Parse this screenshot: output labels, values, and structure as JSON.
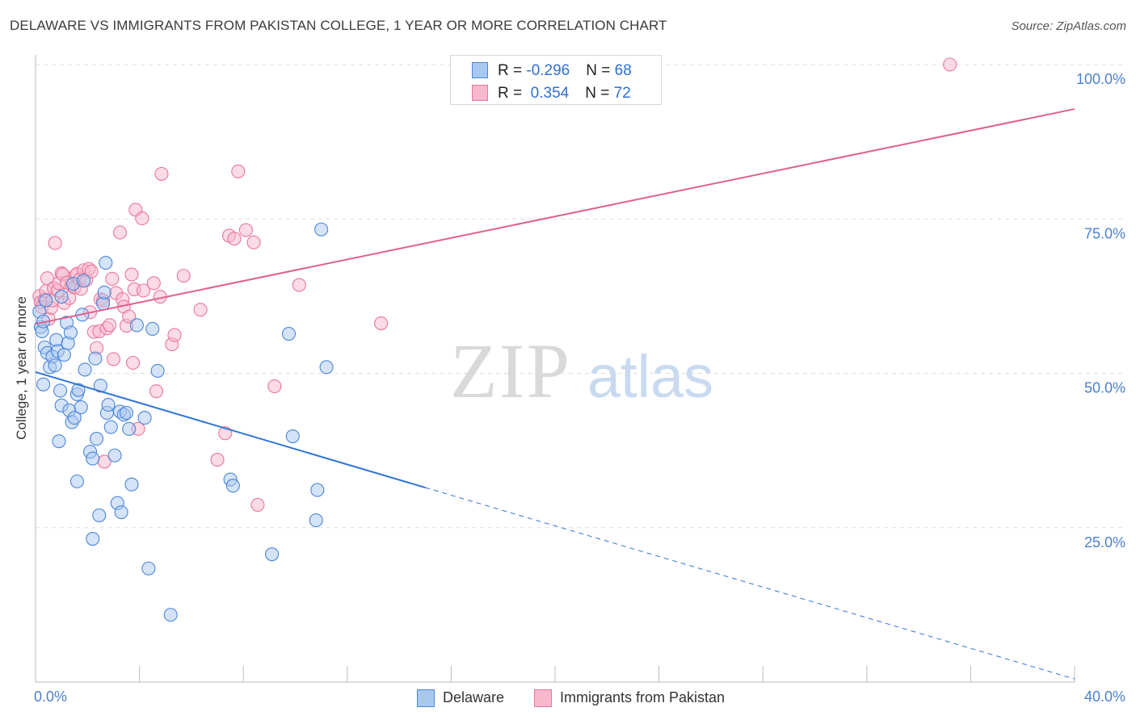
{
  "header": {
    "title": "DELAWARE VS IMMIGRANTS FROM PAKISTAN COLLEGE, 1 YEAR OR MORE CORRELATION CHART",
    "source": "Source: ZipAtlas.com"
  },
  "watermark": {
    "zip": "ZIP",
    "atlas": "atlas"
  },
  "legend_top": {
    "rows": [
      {
        "r_label": "R = ",
        "r_value": "-0.296",
        "n_label": "N = ",
        "n_value": "68"
      },
      {
        "r_label": "R = ",
        "r_value": " 0.354",
        "n_label": "N = ",
        "n_value": "72"
      }
    ]
  },
  "legend_bottom": {
    "delaware": "Delaware",
    "pakistan": "Immigrants from Pakistan"
  },
  "colors": {
    "blue_fill": "#a9c8f0",
    "blue_stroke": "#4a86d8",
    "blue_line": "#2e74d2",
    "pink_fill": "#f7b8cc",
    "pink_stroke": "#e8779c",
    "pink_line": "#e0608c",
    "axis_label": "#4a80cf",
    "grid": "#dddddd"
  },
  "chart_data": {
    "type": "scatter",
    "title": "DELAWARE VS IMMIGRANTS FROM PAKISTAN COLLEGE, 1 YEAR OR MORE CORRELATION CHART",
    "xlabel": "",
    "ylabel": "College, 1 year or more",
    "xlim": [
      0,
      40
    ],
    "ylim": [
      0,
      100
    ],
    "x_tick_labels": [
      {
        "value": 0,
        "label": "0.0%"
      },
      {
        "value": 40,
        "label": "40.0%"
      }
    ],
    "y_tick_labels": [
      {
        "value": 25,
        "label": "25.0%"
      },
      {
        "value": 50,
        "label": "50.0%"
      },
      {
        "value": 75,
        "label": "75.0%"
      },
      {
        "value": 100,
        "label": "100.0%"
      }
    ],
    "grid": true,
    "series": [
      {
        "name": "Delaware",
        "color": "blue",
        "r": -0.296,
        "n": 68,
        "trend": {
          "x0": 0,
          "y0": 50.2,
          "x1": 15,
          "y1": 31.5,
          "dash_to_x": 40,
          "dash_to_y": 0.5
        },
        "points": [
          [
            0.15,
            60.0
          ],
          [
            0.2,
            57.5
          ],
          [
            0.25,
            56.8
          ],
          [
            0.3,
            58.4
          ],
          [
            0.3,
            48.2
          ],
          [
            0.35,
            54.2
          ],
          [
            0.45,
            53.3
          ],
          [
            0.55,
            51.0
          ],
          [
            0.65,
            52.7
          ],
          [
            0.75,
            51.3
          ],
          [
            0.8,
            55.4
          ],
          [
            0.85,
            53.6
          ],
          [
            0.9,
            39.0
          ],
          [
            0.95,
            47.2
          ],
          [
            1.0,
            44.8
          ],
          [
            1.1,
            53.0
          ],
          [
            1.2,
            58.2
          ],
          [
            1.25,
            54.9
          ],
          [
            1.3,
            44.0
          ],
          [
            1.35,
            56.6
          ],
          [
            1.4,
            42.1
          ],
          [
            1.45,
            64.5
          ],
          [
            1.5,
            42.8
          ],
          [
            1.6,
            46.6
          ],
          [
            1.6,
            32.5
          ],
          [
            1.65,
            47.3
          ],
          [
            1.75,
            44.5
          ],
          [
            1.8,
            59.5
          ],
          [
            1.85,
            65.0
          ],
          [
            1.9,
            50.6
          ],
          [
            2.1,
            37.3
          ],
          [
            2.2,
            36.2
          ],
          [
            2.2,
            23.2
          ],
          [
            2.3,
            52.4
          ],
          [
            2.35,
            39.4
          ],
          [
            2.45,
            27.0
          ],
          [
            2.5,
            48.0
          ],
          [
            2.6,
            61.3
          ],
          [
            2.65,
            63.1
          ],
          [
            2.7,
            67.9
          ],
          [
            2.75,
            43.6
          ],
          [
            2.8,
            44.9
          ],
          [
            2.9,
            41.3
          ],
          [
            3.05,
            36.7
          ],
          [
            3.15,
            29.0
          ],
          [
            3.25,
            43.8
          ],
          [
            3.3,
            27.5
          ],
          [
            3.4,
            43.3
          ],
          [
            3.5,
            43.6
          ],
          [
            3.6,
            41.0
          ],
          [
            3.7,
            32.0
          ],
          [
            3.9,
            57.8
          ],
          [
            4.2,
            42.8
          ],
          [
            4.35,
            18.4
          ],
          [
            4.5,
            57.2
          ],
          [
            4.7,
            50.4
          ],
          [
            5.2,
            10.9
          ],
          [
            7.5,
            32.8
          ],
          [
            7.6,
            31.8
          ],
          [
            9.1,
            20.7
          ],
          [
            9.75,
            56.4
          ],
          [
            9.9,
            39.8
          ],
          [
            10.85,
            31.1
          ],
          [
            11.0,
            73.3
          ],
          [
            11.2,
            51.0
          ],
          [
            10.8,
            26.2
          ],
          [
            0.4,
            61.8
          ],
          [
            1.0,
            62.4
          ]
        ]
      },
      {
        "name": "Immigrants from Pakistan",
        "color": "pink",
        "r": 0.354,
        "n": 72,
        "trend": {
          "x0": 0,
          "y0": 58.0,
          "x1": 40,
          "y1": 92.8
        },
        "points": [
          [
            0.15,
            62.5
          ],
          [
            0.2,
            61.5
          ],
          [
            0.25,
            60.7
          ],
          [
            0.35,
            62.0
          ],
          [
            0.4,
            63.3
          ],
          [
            0.45,
            65.4
          ],
          [
            0.5,
            58.8
          ],
          [
            0.6,
            60.6
          ],
          [
            0.65,
            61.8
          ],
          [
            0.7,
            63.8
          ],
          [
            0.75,
            71.1
          ],
          [
            0.85,
            63.4
          ],
          [
            0.9,
            64.6
          ],
          [
            1.0,
            66.2
          ],
          [
            1.05,
            66.0
          ],
          [
            1.1,
            61.4
          ],
          [
            1.2,
            64.7
          ],
          [
            1.3,
            62.2
          ],
          [
            1.4,
            64.2
          ],
          [
            1.5,
            63.9
          ],
          [
            1.55,
            65.9
          ],
          [
            1.6,
            66.1
          ],
          [
            1.7,
            65.2
          ],
          [
            1.75,
            63.7
          ],
          [
            1.85,
            66.7
          ],
          [
            1.95,
            65.1
          ],
          [
            2.05,
            66.9
          ],
          [
            2.1,
            59.9
          ],
          [
            2.15,
            66.5
          ],
          [
            2.25,
            56.7
          ],
          [
            2.35,
            54.1
          ],
          [
            2.45,
            56.8
          ],
          [
            2.5,
            62.0
          ],
          [
            2.6,
            61.8
          ],
          [
            2.65,
            35.7
          ],
          [
            2.75,
            57.3
          ],
          [
            2.85,
            57.8
          ],
          [
            2.95,
            65.3
          ],
          [
            3.0,
            52.3
          ],
          [
            3.1,
            63.0
          ],
          [
            3.25,
            72.8
          ],
          [
            3.35,
            62.0
          ],
          [
            3.4,
            60.8
          ],
          [
            3.5,
            57.7
          ],
          [
            3.6,
            59.2
          ],
          [
            3.7,
            66.0
          ],
          [
            3.75,
            51.7
          ],
          [
            3.8,
            63.6
          ],
          [
            3.85,
            76.5
          ],
          [
            3.95,
            41.0
          ],
          [
            4.1,
            75.1
          ],
          [
            4.15,
            63.4
          ],
          [
            4.55,
            64.6
          ],
          [
            4.65,
            47.1
          ],
          [
            4.8,
            62.4
          ],
          [
            4.85,
            82.3
          ],
          [
            5.25,
            54.7
          ],
          [
            5.35,
            56.2
          ],
          [
            5.7,
            65.8
          ],
          [
            6.35,
            60.3
          ],
          [
            7.0,
            36.0
          ],
          [
            7.3,
            40.3
          ],
          [
            7.45,
            72.3
          ],
          [
            7.65,
            71.8
          ],
          [
            7.8,
            82.7
          ],
          [
            8.1,
            73.2
          ],
          [
            8.4,
            71.2
          ],
          [
            8.55,
            28.7
          ],
          [
            9.2,
            47.9
          ],
          [
            10.15,
            64.3
          ],
          [
            13.3,
            58.1
          ],
          [
            35.2,
            100.0
          ]
        ]
      }
    ]
  }
}
